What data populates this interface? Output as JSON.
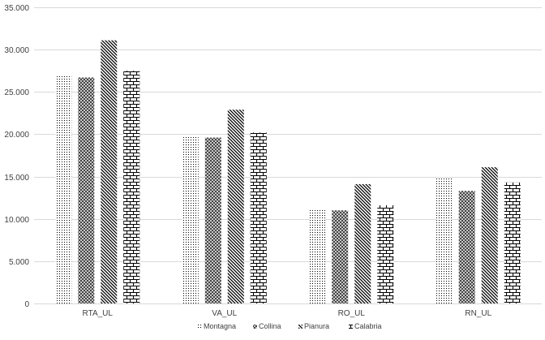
{
  "chart_data": {
    "type": "bar",
    "categories": [
      "RTA_UL",
      "VA_UL",
      "RO_UL",
      "RN_UL"
    ],
    "series": [
      {
        "name": "Montagna",
        "values": [
          27000,
          19800,
          11100,
          14800
        ],
        "pattern": "dots"
      },
      {
        "name": "Collina",
        "values": [
          26700,
          19600,
          11000,
          13300
        ],
        "pattern": "cross"
      },
      {
        "name": "Pianura",
        "values": [
          31100,
          22900,
          14100,
          16100
        ],
        "pattern": "diagonal"
      },
      {
        "name": "Calabria",
        "values": [
          27500,
          20200,
          11600,
          14300
        ],
        "pattern": "brick"
      }
    ],
    "ylim": [
      0,
      35000
    ],
    "yticks": [
      "0",
      "5.000",
      "10.000",
      "15.000",
      "20.000",
      "25.000",
      "30.000",
      "35.000"
    ],
    "grid": true,
    "legend": "bottom",
    "colors": {
      "grid": "#d9d9d9",
      "axis": "#d9d9d9",
      "text": "#404040",
      "fill": "#000000"
    }
  }
}
